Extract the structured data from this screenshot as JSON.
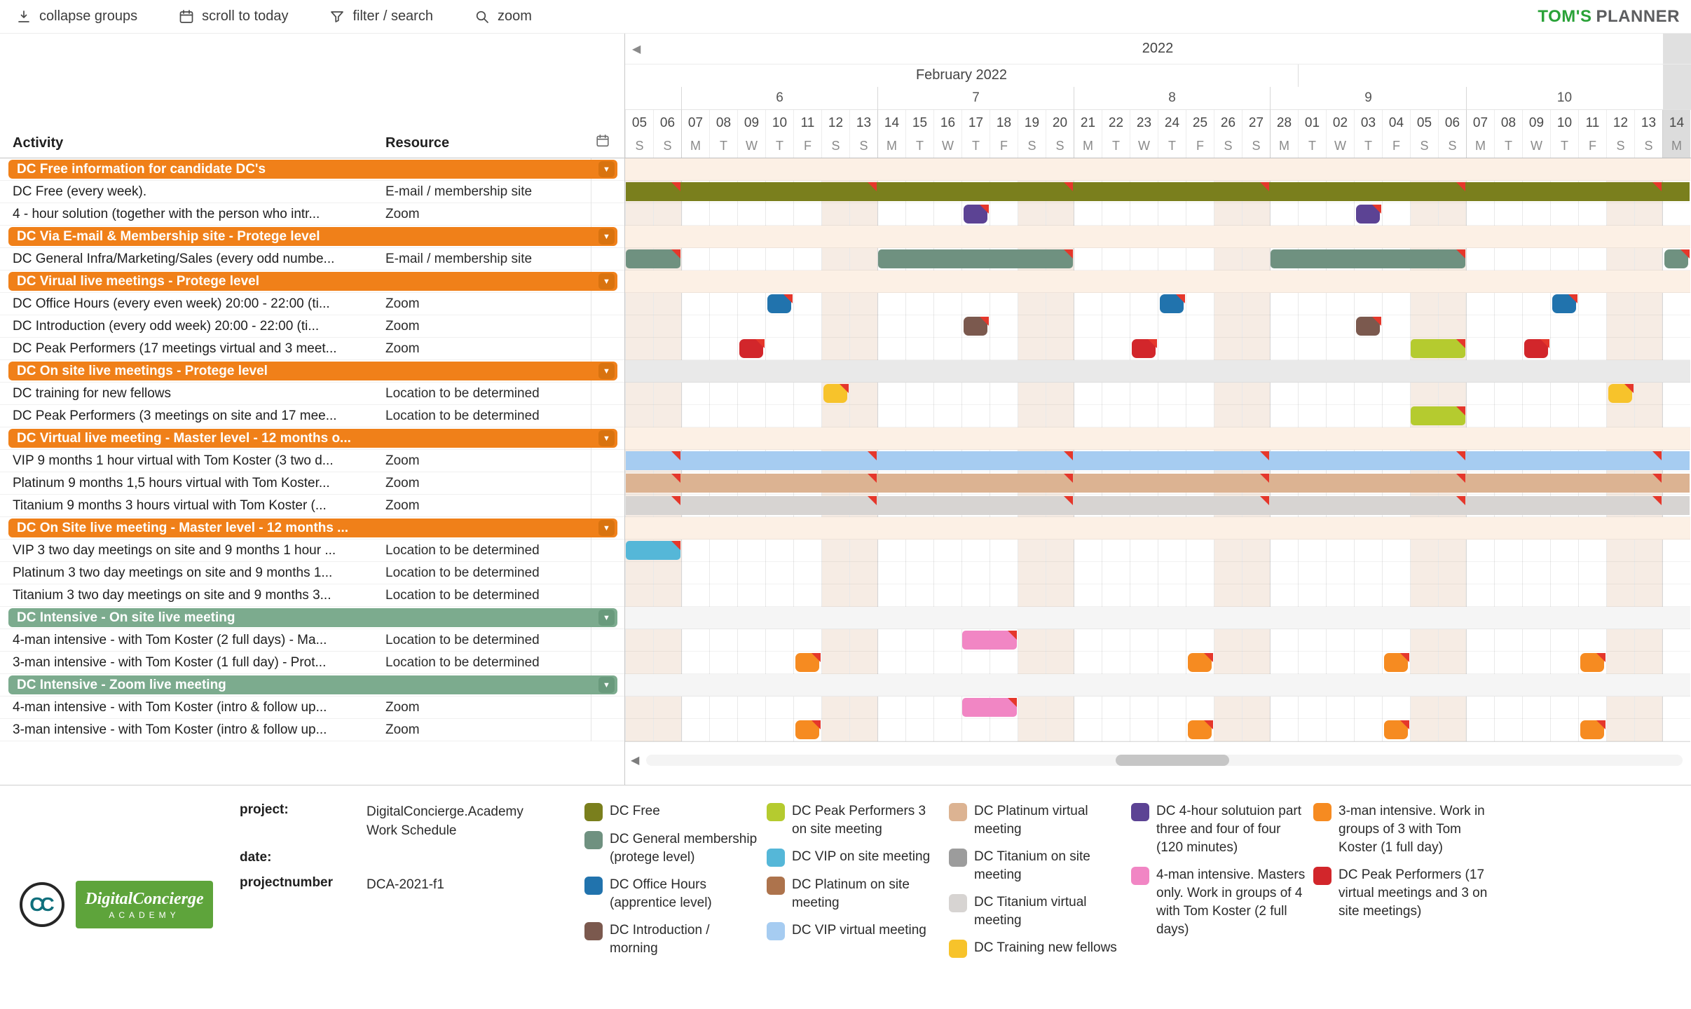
{
  "toolbar": {
    "buttons": [
      {
        "label": "collapse groups",
        "icon": "collapse-groups-icon"
      },
      {
        "label": "scroll to today",
        "icon": "scroll-to-today-icon"
      },
      {
        "label": "filter / search",
        "icon": "filter-search-icon"
      },
      {
        "label": "zoom",
        "icon": "zoom-icon"
      }
    ],
    "logo_primary": "TOM'S",
    "logo_secondary": "PLANNER"
  },
  "left_panel": {
    "activity_header": "Activity",
    "resource_header": "Resource"
  },
  "timeline": {
    "year": "2022",
    "month_label": "February 2022",
    "weeks": [
      {
        "label": "6",
        "start": 2,
        "span": 7
      },
      {
        "label": "7",
        "start": 9,
        "span": 7
      },
      {
        "label": "8",
        "start": 16,
        "span": 7
      },
      {
        "label": "9",
        "start": 23,
        "span": 7
      },
      {
        "label": "10",
        "start": 30,
        "span": 7
      }
    ],
    "days": [
      {
        "d": "05",
        "w": "S"
      },
      {
        "d": "06",
        "w": "S"
      },
      {
        "d": "07",
        "w": "M"
      },
      {
        "d": "08",
        "w": "T"
      },
      {
        "d": "09",
        "w": "W"
      },
      {
        "d": "10",
        "w": "T"
      },
      {
        "d": "11",
        "w": "F"
      },
      {
        "d": "12",
        "w": "S"
      },
      {
        "d": "13",
        "w": "S"
      },
      {
        "d": "14",
        "w": "M"
      },
      {
        "d": "15",
        "w": "T"
      },
      {
        "d": "16",
        "w": "W"
      },
      {
        "d": "17",
        "w": "T"
      },
      {
        "d": "18",
        "w": "F"
      },
      {
        "d": "19",
        "w": "S"
      },
      {
        "d": "20",
        "w": "S"
      },
      {
        "d": "21",
        "w": "M"
      },
      {
        "d": "22",
        "w": "T"
      },
      {
        "d": "23",
        "w": "W"
      },
      {
        "d": "24",
        "w": "T"
      },
      {
        "d": "25",
        "w": "F"
      },
      {
        "d": "26",
        "w": "S"
      },
      {
        "d": "27",
        "w": "S"
      },
      {
        "d": "28",
        "w": "M"
      },
      {
        "d": "01",
        "w": "T"
      },
      {
        "d": "02",
        "w": "W"
      },
      {
        "d": "03",
        "w": "T"
      },
      {
        "d": "04",
        "w": "F"
      },
      {
        "d": "05",
        "w": "S"
      },
      {
        "d": "06",
        "w": "S"
      },
      {
        "d": "07",
        "w": "M"
      },
      {
        "d": "08",
        "w": "T"
      },
      {
        "d": "09",
        "w": "W"
      },
      {
        "d": "10",
        "w": "T"
      },
      {
        "d": "11",
        "w": "F"
      },
      {
        "d": "12",
        "w": "S"
      },
      {
        "d": "13",
        "w": "S"
      },
      {
        "d": "14",
        "w": "M"
      }
    ]
  },
  "colors": {
    "olive": "#7a7f1d",
    "sage": "#6f9180",
    "blue": "#2173ad",
    "brown": "#7b594e",
    "red": "#d2262b",
    "chartreuse": "#b5cb2f",
    "yellow": "#f7c32b",
    "sky": "#a6ccf1",
    "tan": "#dcb392",
    "lightgray": "#d7d4d2",
    "gray": "#9c9c9c",
    "teal": "#55b7d8",
    "sienna": "#ad734c",
    "purple": "#5c4394",
    "pink": "#f186c4",
    "orange": "#f68b21",
    "flag": "#e5372b",
    "group_orange": "#f08019",
    "group_green": "#7cab8e"
  },
  "rows": [
    {
      "type": "group",
      "label": "DC Free information for candidate DC's",
      "variant": "orange",
      "tint": "peach"
    },
    {
      "type": "task",
      "activity": "DC Free (every week).",
      "resource": "E-mail / membership site",
      "bars": [
        {
          "start": 0,
          "span": 38,
          "color": "olive",
          "flags": [
            1,
            8,
            15,
            22,
            29,
            36
          ]
        }
      ]
    },
    {
      "type": "task",
      "activity": "4 - hour solution (together with the person who intr...",
      "resource": "Zoom",
      "bars": [
        {
          "start": 12,
          "span": 1,
          "color": "purple",
          "flags": [
            12
          ]
        },
        {
          "start": 26,
          "span": 1,
          "color": "purple",
          "flags": [
            26
          ]
        }
      ]
    },
    {
      "type": "group",
      "label": "DC Via E-mail & Membership site - Protege level",
      "variant": "orange",
      "tint": "peach"
    },
    {
      "type": "task",
      "activity": "DC General Infra/Marketing/Sales (every odd numbe...",
      "resource": "E-mail / membership site",
      "bars": [
        {
          "start": 0,
          "span": 2,
          "color": "sage",
          "flags": [
            1
          ]
        },
        {
          "start": 9,
          "span": 7,
          "color": "sage",
          "flags": [
            15
          ]
        },
        {
          "start": 23,
          "span": 7,
          "color": "sage",
          "flags": [
            29
          ]
        },
        {
          "start": 37,
          "span": 1,
          "color": "sage",
          "flags": [
            37
          ]
        }
      ]
    },
    {
      "type": "group",
      "label": "DC Virual live meetings - Protege level",
      "variant": "orange",
      "tint": "peach"
    },
    {
      "type": "task",
      "activity": "DC Office Hours (every even week) 20:00 - 22:00 (ti...",
      "resource": "Zoom",
      "bars": [
        {
          "start": 5,
          "span": 1,
          "color": "blue",
          "flags": [
            5
          ]
        },
        {
          "start": 19,
          "span": 1,
          "color": "blue",
          "flags": [
            19
          ]
        },
        {
          "start": 33,
          "span": 1,
          "color": "blue",
          "flags": [
            33
          ]
        }
      ]
    },
    {
      "type": "task",
      "activity": "DC Introduction (every odd week) 20:00 - 22:00 (ti...",
      "resource": "Zoom",
      "bars": [
        {
          "start": 12,
          "span": 1,
          "color": "brown",
          "flags": [
            12
          ]
        },
        {
          "start": 26,
          "span": 1,
          "color": "brown",
          "flags": [
            26
          ]
        }
      ]
    },
    {
      "type": "task",
      "activity": "DC Peak Performers (17 meetings virtual and 3 meet...",
      "resource": "Zoom",
      "bars": [
        {
          "start": 4,
          "span": 1,
          "color": "red",
          "flags": [
            4
          ]
        },
        {
          "start": 18,
          "span": 1,
          "color": "red",
          "flags": [
            18
          ]
        },
        {
          "start": 28,
          "span": 2,
          "color": "chartreuse",
          "flags": [
            29
          ]
        },
        {
          "start": 32,
          "span": 1,
          "color": "red",
          "flags": [
            32
          ]
        }
      ]
    },
    {
      "type": "group",
      "label": "DC On site live meetings - Protege level",
      "variant": "orange",
      "tint": "gray"
    },
    {
      "type": "task",
      "activity": "DC training for new fellows",
      "resource": "Location to be determined",
      "bars": [
        {
          "start": 7,
          "span": 1,
          "color": "yellow",
          "flags": [
            7
          ]
        },
        {
          "start": 35,
          "span": 1,
          "color": "yellow",
          "flags": [
            35
          ]
        }
      ]
    },
    {
      "type": "task",
      "activity": "DC Peak Performers (3 meetings on site and 17 mee...",
      "resource": "Location to be determined",
      "bars": [
        {
          "start": 28,
          "span": 2,
          "color": "chartreuse",
          "flags": [
            29
          ]
        }
      ]
    },
    {
      "type": "group",
      "label": "DC Virtual live meeting - Master level - 12 months o...",
      "variant": "orange",
      "tint": "peach"
    },
    {
      "type": "task",
      "activity": "VIP 9 months 1 hour virtual with Tom Koster (3 two d...",
      "resource": "Zoom",
      "bars": [
        {
          "start": 0,
          "span": 38,
          "color": "sky",
          "flags": [
            1,
            8,
            15,
            22,
            29,
            36
          ]
        }
      ]
    },
    {
      "type": "task",
      "activity": "Platinum 9 months 1,5 hours virtual with Tom Koster...",
      "resource": "Zoom",
      "bars": [
        {
          "start": 0,
          "span": 38,
          "color": "tan",
          "flags": [
            1,
            8,
            15,
            22,
            29,
            36
          ]
        }
      ]
    },
    {
      "type": "task",
      "activity": "Titanium 9 months 3 hours virtual with Tom Koster (...",
      "resource": "Zoom",
      "bars": [
        {
          "start": 0,
          "span": 38,
          "color": "lightgray",
          "flags": [
            1,
            8,
            15,
            22,
            29,
            36
          ]
        }
      ]
    },
    {
      "type": "group",
      "label": "DC On Site live meeting - Master level - 12 months ...",
      "variant": "orange",
      "tint": "peach"
    },
    {
      "type": "task",
      "activity": "VIP 3 two day meetings on site and 9 months 1 hour ...",
      "resource": "Location to be determined",
      "bars": [
        {
          "start": 0,
          "span": 2,
          "color": "teal",
          "flags": [
            1
          ]
        }
      ]
    },
    {
      "type": "task",
      "activity": "Platinum 3 two day meetings on site and 9 months 1...",
      "resource": "Location to be determined",
      "bars": []
    },
    {
      "type": "task",
      "activity": "Titanium 3 two day meetings on site and 9 months 3...",
      "resource": "Location to be determined",
      "bars": []
    },
    {
      "type": "group",
      "label": "DC Intensive - On site live meeting",
      "variant": "green",
      "tint": "light"
    },
    {
      "type": "task",
      "activity": "4-man intensive - with Tom Koster (2 full days) - Ma...",
      "resource": "Location to be determined",
      "bars": [
        {
          "start": 12,
          "span": 2,
          "color": "pink",
          "flags": [
            13
          ]
        }
      ]
    },
    {
      "type": "task",
      "activity": "3-man intensive - with Tom Koster (1 full day) - Prot...",
      "resource": "Location to be determined",
      "bars": [
        {
          "start": 6,
          "span": 1,
          "color": "orange",
          "flags": [
            6
          ]
        },
        {
          "start": 20,
          "span": 1,
          "color": "orange",
          "flags": [
            20
          ]
        },
        {
          "start": 27,
          "span": 1,
          "color": "orange",
          "flags": [
            27
          ]
        },
        {
          "start": 34,
          "span": 1,
          "color": "orange",
          "flags": [
            34
          ]
        }
      ]
    },
    {
      "type": "group",
      "label": "DC Intensive - Zoom live meeting",
      "variant": "green",
      "tint": "light"
    },
    {
      "type": "task",
      "activity": "4-man intensive - with Tom Koster (intro & follow up...",
      "resource": "Zoom",
      "bars": [
        {
          "start": 12,
          "span": 2,
          "color": "pink",
          "flags": [
            13
          ]
        }
      ]
    },
    {
      "type": "task",
      "activity": "3-man intensive - with Tom Koster (intro & follow up...",
      "resource": "Zoom",
      "bars": [
        {
          "start": 6,
          "span": 1,
          "color": "orange",
          "flags": [
            6
          ]
        },
        {
          "start": 20,
          "span": 1,
          "color": "orange",
          "flags": [
            20
          ]
        },
        {
          "start": 27,
          "span": 1,
          "color": "orange",
          "flags": [
            27
          ]
        },
        {
          "start": 34,
          "span": 1,
          "color": "orange",
          "flags": [
            34
          ]
        }
      ]
    }
  ],
  "project": {
    "project_label": "project:",
    "project_value": "DigitalConcierge.Academy Work Schedule",
    "date_label": "date:",
    "date_value": "",
    "number_label": "projectnumber",
    "number_value": "DCA-2021-f1"
  },
  "logos": {
    "roundel_text": "CC",
    "banner_line1": "DigitalConcierge",
    "banner_line2": "ACADEMY"
  },
  "legend": {
    "columns": [
      [
        {
          "color": "olive",
          "text": "DC Free"
        },
        {
          "color": "sage",
          "text": "DC General membership (protege level)"
        },
        {
          "color": "blue",
          "text": "DC Office Hours (apprentice level)"
        },
        {
          "color": "brown",
          "text": "DC Introduction / morning"
        }
      ],
      [
        {
          "color": "chartreuse",
          "text": "DC Peak Performers 3 on site meeting"
        },
        {
          "color": "teal",
          "text": "DC VIP on site meeting"
        },
        {
          "color": "sienna",
          "text": "DC Platinum on site meeting"
        },
        {
          "color": "sky",
          "text": "DC VIP virtual meeting"
        }
      ],
      [
        {
          "color": "tan",
          "text": "DC Platinum virtual meeting"
        },
        {
          "color": "gray",
          "text": "DC Titanium on site meeting"
        },
        {
          "color": "lightgray",
          "text": "DC Titanium virtual meeting"
        },
        {
          "color": "yellow",
          "text": "DC Training new fellows"
        }
      ],
      [
        {
          "color": "purple",
          "text": "DC 4-hour solutuion part three and four of four (120 minutes)"
        },
        {
          "color": "pink",
          "text": "4-man intensive. Masters only. Work in groups of 4 with Tom Koster (2 full days)"
        }
      ],
      [
        {
          "color": "orange",
          "text": "3-man intensive. Work in groups of 3 with Tom Koster (1 full day)"
        },
        {
          "color": "red",
          "text": "DC Peak Performers (17 virtual meetings and 3 on site meetings)"
        }
      ]
    ]
  }
}
